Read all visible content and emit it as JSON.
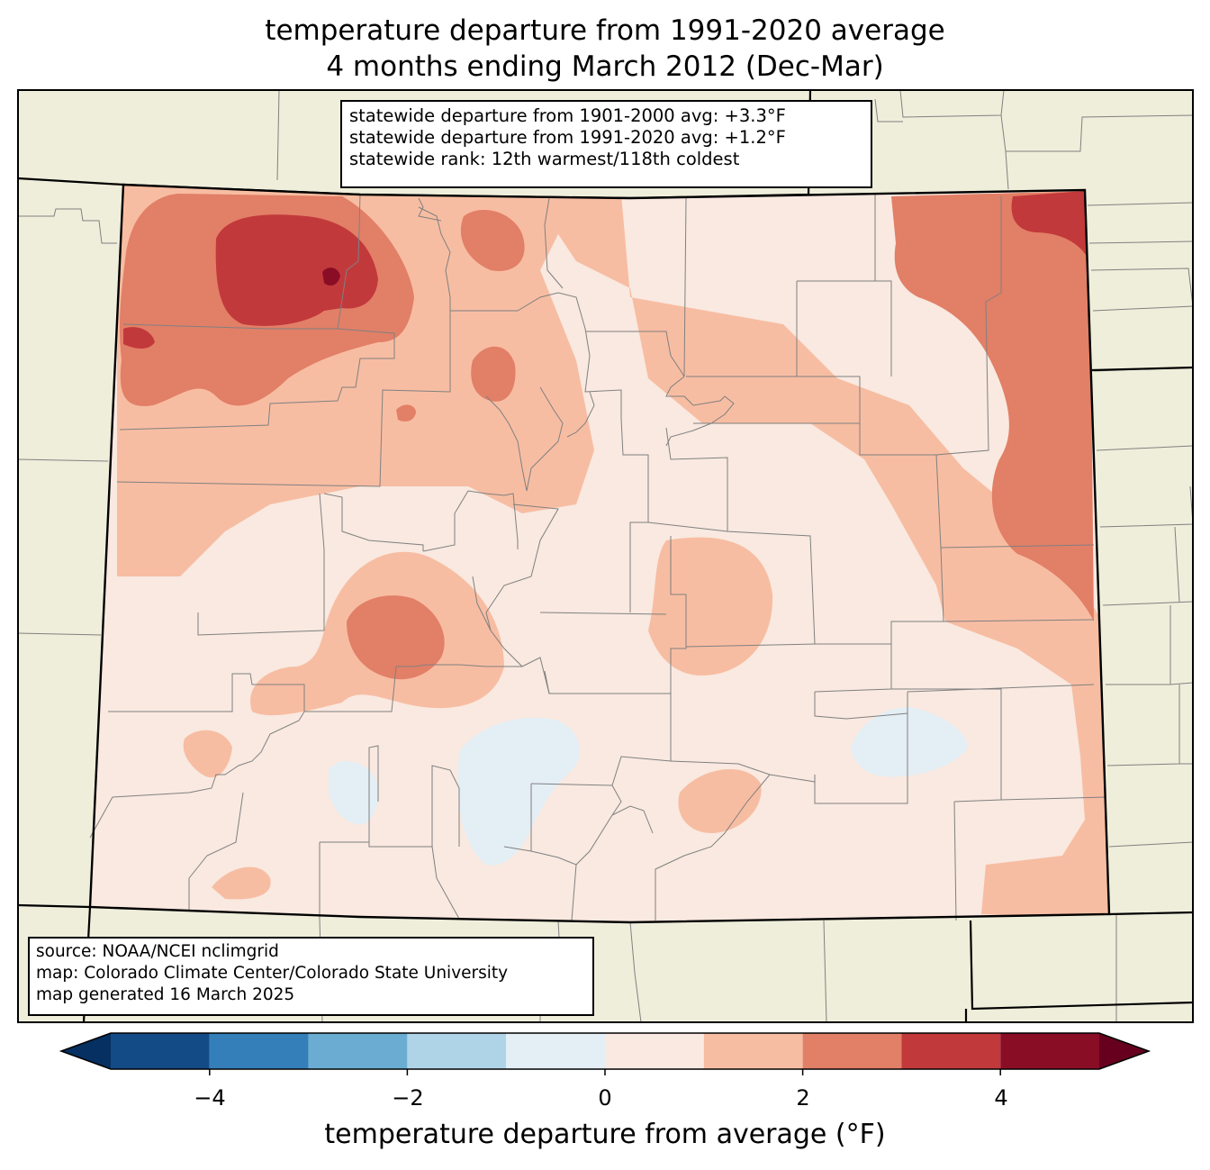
{
  "title": {
    "line1": "temperature departure from 1991-2020 average",
    "line2": "4 months ending March 2012 (Dec-Mar)"
  },
  "stats": {
    "line1": "statewide departure from 1901-2000 avg: +3.3°F",
    "line2": "statewide departure from 1991-2020 avg: +1.2°F",
    "line3": "statewide rank: 12th warmest/118th coldest"
  },
  "credits": {
    "line1": "source: NOAA/NCEI nclimgrid",
    "line2": "map: Colorado Climate Center/Colorado State University",
    "line3": "map generated 16 March 2025"
  },
  "colorbar": {
    "label": "temperature departure from average (°F)",
    "ticks": [
      "−4",
      "−2",
      "0",
      "2",
      "4"
    ],
    "bins": [
      {
        "min": -5,
        "max": -4,
        "color": "#134b87"
      },
      {
        "min": -4,
        "max": -3,
        "color": "#347fb9"
      },
      {
        "min": -3,
        "max": -2,
        "color": "#6badd2"
      },
      {
        "min": -2,
        "max": -1,
        "color": "#b0d4e7"
      },
      {
        "min": -1,
        "max": 0,
        "color": "#e4eef5"
      },
      {
        "min": 0,
        "max": 1,
        "color": "#f9e9e0"
      },
      {
        "min": 1,
        "max": 2,
        "color": "#f7bda2"
      },
      {
        "min": 2,
        "max": 3,
        "color": "#e27f67"
      },
      {
        "min": 3,
        "max": 4,
        "color": "#c2393b"
      },
      {
        "min": 4,
        "max": 5,
        "color": "#8a0d26"
      }
    ],
    "under_color": "#053061",
    "over_color": "#67001f"
  },
  "map": {
    "background_color": "#efeedb",
    "state_border_color": "#000000",
    "county_line_color": "#808080"
  }
}
